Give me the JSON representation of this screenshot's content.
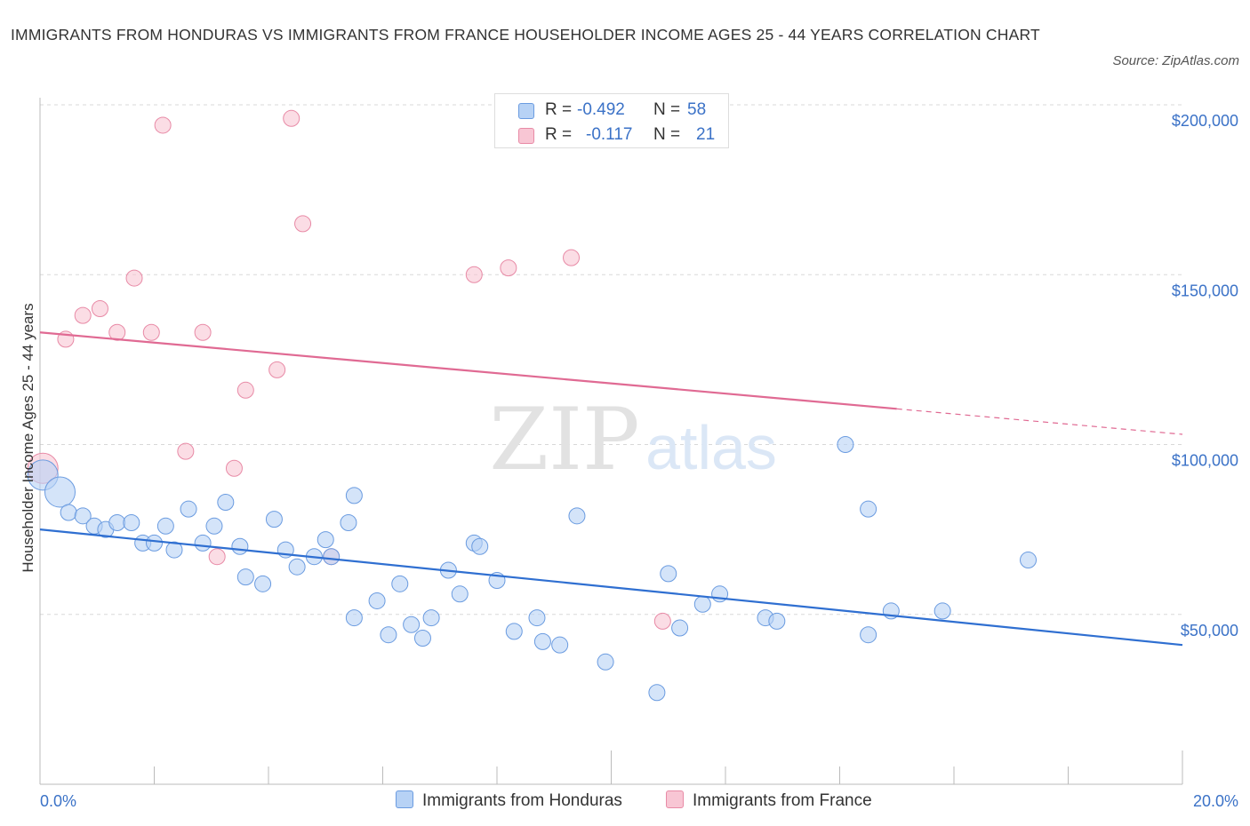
{
  "title": "IMMIGRANTS FROM HONDURAS VS IMMIGRANTS FROM FRANCE HOUSEHOLDER INCOME AGES 25 - 44 YEARS CORRELATION CHART",
  "source": "Source: ZipAtlas.com",
  "watermark": {
    "zip": "ZIP",
    "atlas": "atlas"
  },
  "legend": {
    "rows": [
      {
        "r_label": "R =",
        "r_value": "-0.492",
        "n_label": "N =",
        "n_value": "58"
      },
      {
        "r_label": "R =",
        "r_value": "-0.117",
        "n_label": "N =",
        "n_value": "21"
      }
    ]
  },
  "colors": {
    "honduras_fill": "#b7d2f5",
    "honduras_stroke": "#6a9be0",
    "honduras_line": "#2f6fd1",
    "france_fill": "#f8c6d4",
    "france_stroke": "#e88aa6",
    "france_line": "#e06a93",
    "tick_text": "#3b72c7",
    "grid": "#d8d8d8"
  },
  "chart_data": {
    "type": "scatter",
    "title": "IMMIGRANTS FROM HONDURAS VS IMMIGRANTS FROM FRANCE HOUSEHOLDER INCOME AGES 25 - 44 YEARS CORRELATION CHART",
    "xlabel": "",
    "ylabel": "Householder Income Ages 25 - 44 years",
    "xlim": [
      0,
      20
    ],
    "ylim": [
      0,
      200000
    ],
    "x_tick_labels": [
      "0.0%",
      "20.0%"
    ],
    "y_ticks": [
      50000,
      100000,
      150000,
      200000
    ],
    "y_tick_labels": [
      "$50,000",
      "$100,000",
      "$150,000",
      "$200,000"
    ],
    "grid": "horizontal dashed",
    "legend_position": "top-center and bottom",
    "series": [
      {
        "name": "Immigrants from Honduras",
        "R": -0.492,
        "N": 58,
        "trend": {
          "x": [
            0,
            20
          ],
          "y": [
            75000,
            41000
          ],
          "dashed_from": null
        },
        "points": [
          {
            "x": 0.05,
            "y": 91000,
            "big": true
          },
          {
            "x": 0.35,
            "y": 86000,
            "big": true
          },
          {
            "x": 0.5,
            "y": 80000
          },
          {
            "x": 0.75,
            "y": 79000
          },
          {
            "x": 0.95,
            "y": 76000
          },
          {
            "x": 1.15,
            "y": 75000
          },
          {
            "x": 1.35,
            "y": 77000
          },
          {
            "x": 1.6,
            "y": 77000
          },
          {
            "x": 1.8,
            "y": 71000
          },
          {
            "x": 2.0,
            "y": 71000
          },
          {
            "x": 2.2,
            "y": 76000
          },
          {
            "x": 2.35,
            "y": 69000
          },
          {
            "x": 2.6,
            "y": 81000
          },
          {
            "x": 2.85,
            "y": 71000
          },
          {
            "x": 3.05,
            "y": 76000
          },
          {
            "x": 3.25,
            "y": 83000
          },
          {
            "x": 3.5,
            "y": 70000
          },
          {
            "x": 3.6,
            "y": 61000
          },
          {
            "x": 3.9,
            "y": 59000
          },
          {
            "x": 4.1,
            "y": 78000
          },
          {
            "x": 4.3,
            "y": 69000
          },
          {
            "x": 4.5,
            "y": 64000
          },
          {
            "x": 4.8,
            "y": 67000
          },
          {
            "x": 5.0,
            "y": 72000
          },
          {
            "x": 5.1,
            "y": 67000
          },
          {
            "x": 5.4,
            "y": 77000
          },
          {
            "x": 5.5,
            "y": 85000
          },
          {
            "x": 5.5,
            "y": 49000
          },
          {
            "x": 5.9,
            "y": 54000
          },
          {
            "x": 6.1,
            "y": 44000
          },
          {
            "x": 6.3,
            "y": 59000
          },
          {
            "x": 6.5,
            "y": 47000
          },
          {
            "x": 6.7,
            "y": 43000
          },
          {
            "x": 6.85,
            "y": 49000
          },
          {
            "x": 7.15,
            "y": 63000
          },
          {
            "x": 7.35,
            "y": 56000
          },
          {
            "x": 7.6,
            "y": 71000
          },
          {
            "x": 7.7,
            "y": 70000
          },
          {
            "x": 8.0,
            "y": 60000
          },
          {
            "x": 8.3,
            "y": 45000
          },
          {
            "x": 8.7,
            "y": 49000
          },
          {
            "x": 8.8,
            "y": 42000
          },
          {
            "x": 9.1,
            "y": 41000
          },
          {
            "x": 9.4,
            "y": 79000
          },
          {
            "x": 9.9,
            "y": 36000
          },
          {
            "x": 10.8,
            "y": 27000
          },
          {
            "x": 11.0,
            "y": 62000
          },
          {
            "x": 11.2,
            "y": 46000
          },
          {
            "x": 11.6,
            "y": 53000
          },
          {
            "x": 11.9,
            "y": 56000
          },
          {
            "x": 12.7,
            "y": 49000
          },
          {
            "x": 12.9,
            "y": 48000
          },
          {
            "x": 14.1,
            "y": 100000
          },
          {
            "x": 14.5,
            "y": 81000
          },
          {
            "x": 14.5,
            "y": 44000
          },
          {
            "x": 14.9,
            "y": 51000
          },
          {
            "x": 15.8,
            "y": 51000
          },
          {
            "x": 17.3,
            "y": 66000
          }
        ]
      },
      {
        "name": "Immigrants from France",
        "R": -0.117,
        "N": 21,
        "trend": {
          "x": [
            0,
            20
          ],
          "y": [
            133000,
            103000
          ],
          "dashed_from": 15
        },
        "points": [
          {
            "x": 0.05,
            "y": 93000,
            "big": true
          },
          {
            "x": 0.45,
            "y": 131000
          },
          {
            "x": 0.75,
            "y": 138000
          },
          {
            "x": 1.05,
            "y": 140000
          },
          {
            "x": 1.35,
            "y": 133000
          },
          {
            "x": 1.65,
            "y": 149000
          },
          {
            "x": 1.95,
            "y": 133000
          },
          {
            "x": 2.15,
            "y": 194000
          },
          {
            "x": 2.55,
            "y": 98000
          },
          {
            "x": 2.85,
            "y": 133000
          },
          {
            "x": 3.1,
            "y": 67000
          },
          {
            "x": 3.4,
            "y": 93000
          },
          {
            "x": 3.6,
            "y": 116000
          },
          {
            "x": 4.15,
            "y": 122000
          },
          {
            "x": 4.4,
            "y": 196000
          },
          {
            "x": 4.6,
            "y": 165000
          },
          {
            "x": 5.1,
            "y": 67000
          },
          {
            "x": 7.6,
            "y": 150000
          },
          {
            "x": 8.2,
            "y": 152000
          },
          {
            "x": 9.3,
            "y": 155000
          },
          {
            "x": 10.9,
            "y": 48000
          }
        ]
      }
    ]
  }
}
